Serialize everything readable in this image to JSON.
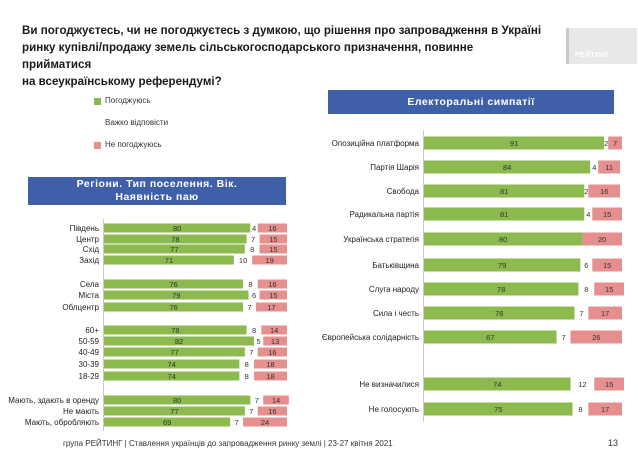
{
  "header": {
    "question_lines": [
      "Ви погоджуєтесь, чи не погоджуєтесь з думкою, що рішення про запровадження в Україні",
      "ринку купівлі/продажу земель сільськогосподарського призначення, повинне прийматися",
      "на всеукраїнському референдумі?"
    ],
    "logo_text": "РЕЙТИНГ"
  },
  "banners": {
    "electoral": "Електоральні симпатії",
    "regions_line1": "Регіони. Тип поселення. Вік.",
    "regions_line2": "Наявність паю"
  },
  "legend": [
    {
      "label": "Погоджуюсь",
      "color": "#8cba4e"
    },
    {
      "label": "Важко відповісти",
      "color": "#ffffff"
    },
    {
      "label": "Не погоджуюсь",
      "color": "#e58f8f"
    }
  ],
  "footer": {
    "source": "група РЕЙТИНГ | Ставлення українців до запровадження ринку землі | 23-27 квітня 2021",
    "page": "13"
  },
  "chart_data": [
    {
      "type": "bar",
      "orientation": "horizontal",
      "stacked": true,
      "name": "regions",
      "categories": [
        "Південь",
        "Центр",
        "Схід",
        "Захід",
        "Села",
        "Міста",
        "Облцентр",
        "60+",
        "50-59",
        "40-49",
        "30-39",
        "18-29",
        "Мають, здають в оренду",
        "Не мають",
        "Мають, обробляють"
      ],
      "series": [
        {
          "name": "Погоджуюсь",
          "color": "#8cba4e",
          "values": [
            80,
            78,
            77,
            71,
            76,
            79,
            76,
            78,
            82,
            77,
            74,
            74,
            80,
            77,
            69
          ]
        },
        {
          "name": "Важко відповісти",
          "color": "#ffffff",
          "values": [
            4,
            7,
            8,
            10,
            8,
            6,
            7,
            8,
            5,
            7,
            8,
            8,
            7,
            7,
            7
          ]
        },
        {
          "name": "Не погоджуюсь",
          "color": "#e58f8f",
          "values": [
            16,
            15,
            15,
            19,
            16,
            15,
            17,
            14,
            13,
            16,
            18,
            18,
            14,
            16,
            24
          ]
        }
      ]
    },
    {
      "type": "bar",
      "orientation": "horizontal",
      "stacked": true,
      "name": "electoral",
      "categories": [
        "Опозиційна платформа",
        "Партія Шарія",
        "Свобода",
        "Радикальна партія",
        "Українська стратегія",
        "Батьківщина",
        "Слуга народу",
        "Сила і честь",
        "Європейська солідарність",
        "Не визначилися",
        "Не голосують"
      ],
      "series": [
        {
          "name": "Погоджуюсь",
          "color": "#8cba4e",
          "values": [
            91,
            84,
            81,
            81,
            80,
            79,
            78,
            76,
            67,
            74,
            75
          ]
        },
        {
          "name": "Важко відповісти",
          "color": "#ffffff",
          "values": [
            2,
            4,
            2,
            4,
            null,
            6,
            8,
            7,
            7,
            12,
            8
          ]
        },
        {
          "name": "Не погоджуюсь",
          "color": "#e58f8f",
          "values": [
            7,
            11,
            16,
            15,
            20,
            15,
            15,
            17,
            26,
            15,
            17
          ]
        }
      ]
    }
  ]
}
